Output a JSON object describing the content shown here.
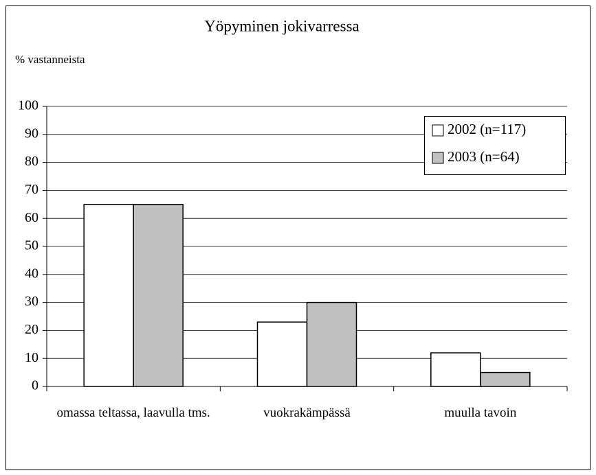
{
  "chart_data": {
    "type": "bar",
    "title": "Yöpyminen jokivarressa",
    "y_label": "% vastanneista",
    "categories": [
      "omassa teltassa, laavulla tms.",
      "vuokrakämpässä",
      "muulla tavoin"
    ],
    "series": [
      {
        "name": "2002 (n=117)",
        "color": "#ffffff",
        "values": [
          65,
          23,
          12
        ]
      },
      {
        "name": "2003 (n=64)",
        "color": "#c0c0c0",
        "values": [
          65,
          30,
          5
        ]
      }
    ],
    "ylim": [
      0,
      100
    ],
    "yticks": [
      0,
      10,
      20,
      30,
      40,
      50,
      60,
      70,
      80,
      90,
      100
    ],
    "grid": true,
    "legend": "upper right"
  }
}
